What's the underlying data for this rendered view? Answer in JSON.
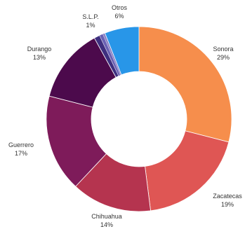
{
  "chart_data": {
    "type": "pie",
    "variant": "donut",
    "title": "",
    "slices": [
      {
        "label": "Sonora",
        "value": 29,
        "value_label": "29%",
        "color": "#F68E4C"
      },
      {
        "label": "Zacatecas",
        "value": 19,
        "value_label": "19%",
        "color": "#DF5654"
      },
      {
        "label": "Chihuahua",
        "value": 14,
        "value_label": "14%",
        "color": "#B5344F"
      },
      {
        "label": "Guerrero",
        "value": 17,
        "value_label": "17%",
        "color": "#7E1B5A"
      },
      {
        "label": "Durango",
        "value": 13,
        "value_label": "13%",
        "color": "#4C0A4C"
      },
      {
        "label": "S.L.P.",
        "value": 1,
        "value_label": "1%",
        "color": "#3E2F7F"
      },
      {
        "label": "Otros",
        "value": 6,
        "value_label": "6%",
        "color": "#2896E8"
      }
    ],
    "extra_slivers": [
      {
        "value": 0.6,
        "color": "#6A61B3"
      },
      {
        "value": 0.4,
        "color": "#8C84C6"
      }
    ],
    "legend": "none",
    "labels_position": "outside"
  }
}
